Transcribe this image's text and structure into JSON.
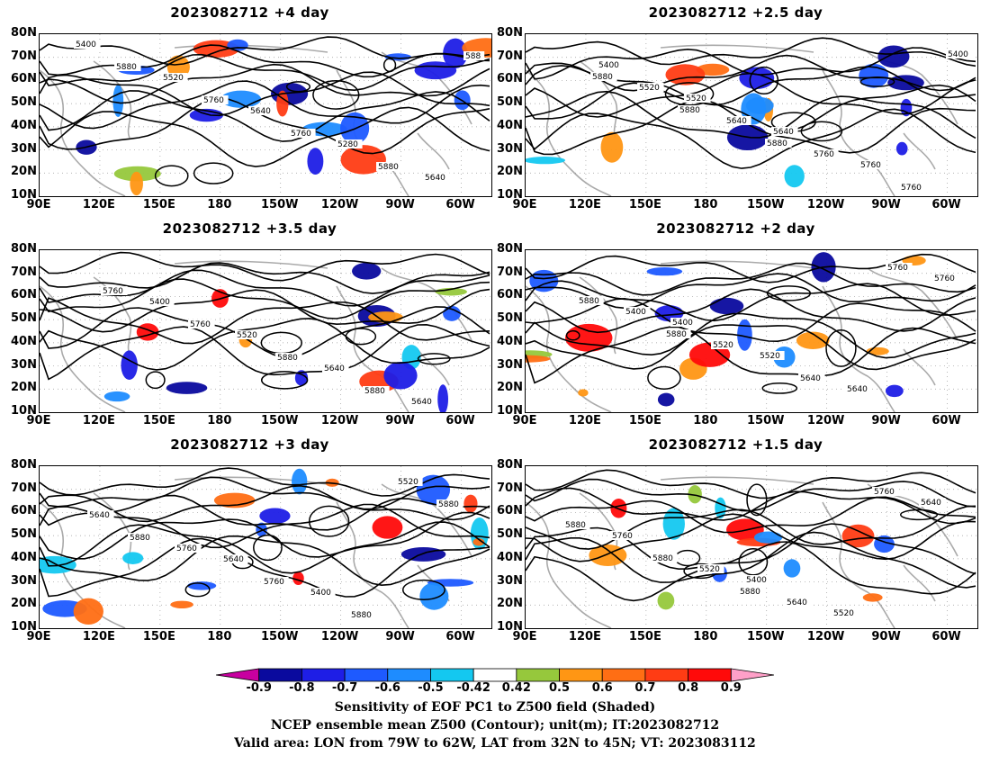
{
  "panels": [
    {
      "title": "2023082712 +4 day",
      "xticks": [
        "90E",
        "120E",
        "150E",
        "180",
        "150W",
        "120W",
        "90W",
        "60W"
      ],
      "yticks": [
        "80N",
        "70N",
        "60N",
        "50N",
        "40N",
        "30N",
        "20N",
        "10N"
      ],
      "contour_labels": [
        "5400",
        "5520",
        "5640",
        "5280",
        "5640",
        "5880",
        "5760",
        "5760",
        "5880",
        "588"
      ]
    },
    {
      "title": "2023082712 +2.5 day",
      "xticks": [
        "90E",
        "120E",
        "150E",
        "180",
        "150W",
        "120W",
        "90W",
        "60W"
      ],
      "yticks": [
        "80N",
        "70N",
        "60N",
        "50N",
        "40N",
        "30N",
        "20N",
        "10N"
      ],
      "contour_labels": [
        "5400",
        "5520",
        "5640",
        "5760",
        "5400",
        "5520",
        "5640",
        "5760",
        "5760",
        "5880",
        "5880",
        "5880"
      ]
    },
    {
      "title": "2023082712 +3.5 day",
      "xticks": [
        "90E",
        "120E",
        "150E",
        "180",
        "150W",
        "120W",
        "90W",
        "60W"
      ],
      "yticks": [
        "80N",
        "70N",
        "60N",
        "50N",
        "40N",
        "30N",
        "20N",
        "10N"
      ],
      "contour_labels": [
        "5400",
        "5520",
        "5640",
        "5640",
        "5760",
        "5760",
        "5880",
        "5880"
      ]
    },
    {
      "title": "2023082712 +2 day",
      "xticks": [
        "90E",
        "120E",
        "150E",
        "180",
        "150W",
        "120W",
        "90W",
        "60W"
      ],
      "yticks": [
        "80N",
        "70N",
        "60N",
        "50N",
        "40N",
        "30N",
        "20N",
        "10N"
      ],
      "contour_labels": [
        "5400",
        "5520",
        "5640",
        "5760",
        "5400",
        "5520",
        "5640",
        "5760",
        "5880",
        "5880"
      ]
    },
    {
      "title": "2023082712 +3 day",
      "xticks": [
        "90E",
        "120E",
        "150E",
        "180",
        "150W",
        "120W",
        "90W",
        "60W"
      ],
      "yticks": [
        "80N",
        "70N",
        "60N",
        "50N",
        "40N",
        "30N",
        "20N",
        "10N"
      ],
      "contour_labels": [
        "5640",
        "5400",
        "5520",
        "5640",
        "5760",
        "5760",
        "5880",
        "5880",
        "5880"
      ]
    },
    {
      "title": "2023082712 +1.5 day",
      "xticks": [
        "90E",
        "120E",
        "150E",
        "180",
        "150W",
        "120W",
        "90W",
        "60W"
      ],
      "yticks": [
        "80N",
        "70N",
        "60N",
        "50N",
        "40N",
        "30N",
        "20N",
        "10N"
      ],
      "contour_labels": [
        "5400",
        "5520",
        "5640",
        "5760",
        "5520",
        "5640",
        "5760",
        "5880",
        "5880",
        "5880"
      ]
    }
  ],
  "colorbar": {
    "ticks": [
      "-0.9",
      "-0.8",
      "-0.7",
      "-0.6",
      "-0.5",
      "-0.42",
      "0.42",
      "0.5",
      "0.6",
      "0.7",
      "0.8",
      "0.9"
    ],
    "colors": [
      "#0a0a9e",
      "#1e1ee6",
      "#1e5aff",
      "#1e8cff",
      "#14c8f0",
      "#ffffff",
      "#96c83c",
      "#ff9614",
      "#ff6e14",
      "#ff3c14",
      "#ff0a0a"
    ],
    "low_end_color": "#c800a0",
    "high_end_color": "#ffa0c8"
  },
  "caption": {
    "line1": "Sensitivity of EOF PC1 to Z500 field (Shaded)",
    "line2": "NCEP ensemble mean Z500 (Contour); unit(m); IT:2023082712",
    "line3": "Valid area: LON from 79W to 62W, LAT from 32N to 45N; VT: 2023083112"
  }
}
